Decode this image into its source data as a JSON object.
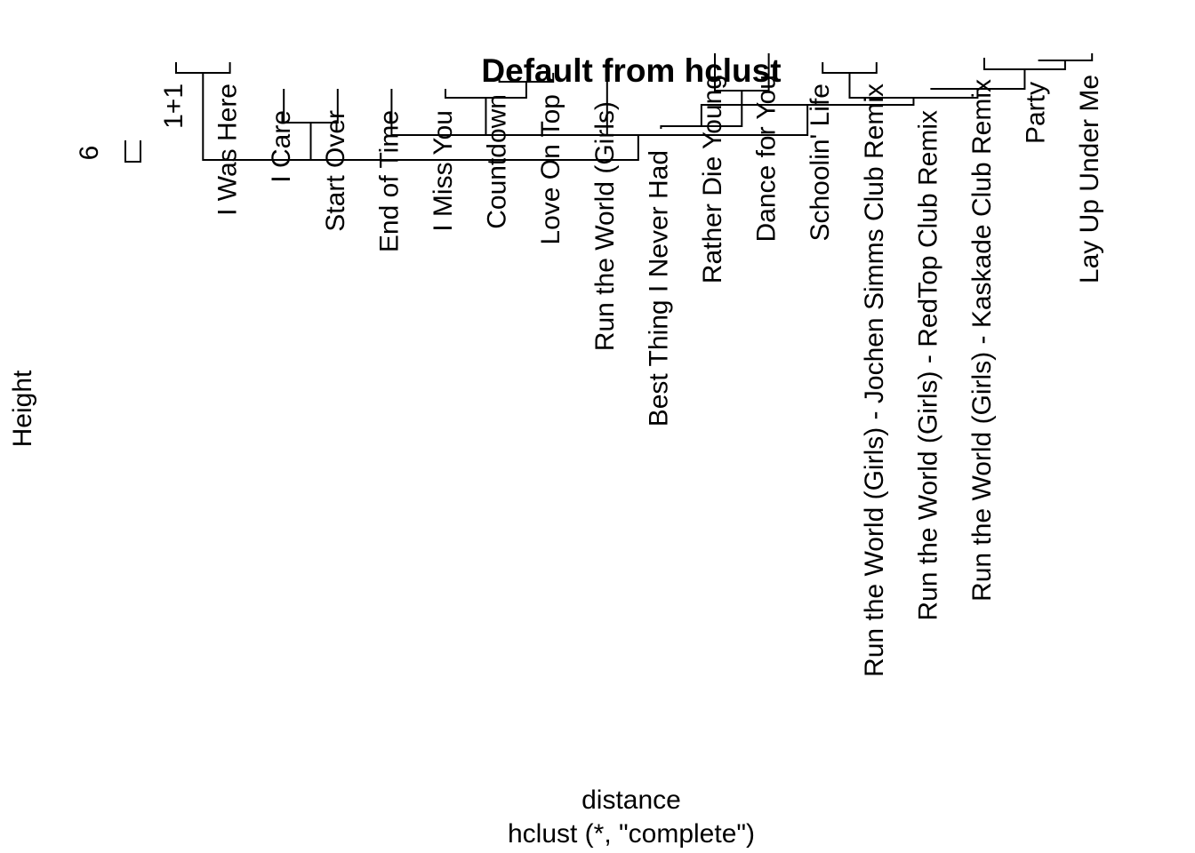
{
  "chart_data": {
    "type": "dendrogram",
    "title": "Default from hclust",
    "xlabel": "distance",
    "sub": "hclust (*, \"complete\")",
    "ylabel": "Height",
    "y_ticks": [
      "6"
    ],
    "leaves": [
      "1+1",
      "I Was Here",
      "I Care",
      "Start Over",
      "End of Time",
      "I Miss You",
      "Countdown",
      "Love On Top",
      "Run the World (Girls)",
      "Best Thing I Never Had",
      "Rather Die Young",
      "Dance for You",
      "Schoolin' Life",
      "Run the World (Girls) - Jochen Simms Club Remix",
      "Run the World (Girls) - RedTop Club Remix",
      "Run the World (Girls) - Kaskade Club Remix",
      "Party",
      "Lay Up Under Me"
    ],
    "merges": [
      [
        -1,
        -2
      ],
      [
        -3,
        -4
      ],
      [
        1,
        2
      ],
      [
        -7,
        -8
      ],
      [
        -6,
        4
      ],
      [
        -9,
        5
      ],
      [
        -5,
        6
      ],
      [
        -11,
        -12
      ],
      [
        -13,
        -14
      ],
      [
        -10,
        8
      ],
      [
        -17,
        -18
      ],
      [
        -16,
        11
      ],
      [
        -15,
        12
      ],
      [
        9,
        13
      ],
      [
        10,
        14
      ],
      [
        7,
        15
      ],
      [
        3,
        16
      ]
    ]
  }
}
